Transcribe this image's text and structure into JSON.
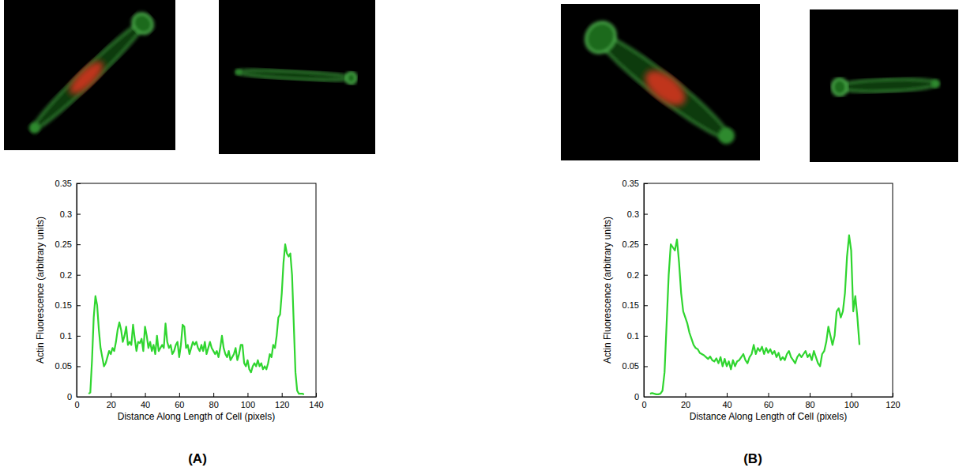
{
  "chart_data": [
    {
      "type": "line",
      "title": "(A)",
      "xlabel": "Distance Along Length of Cell (pixels)",
      "ylabel": "Actin Fluorescence (arbitrary units)",
      "xlim": [
        0,
        140
      ],
      "xticks": [
        0,
        20,
        40,
        60,
        80,
        100,
        120,
        140
      ],
      "ylim": [
        0,
        0.35
      ],
      "yticks": [
        0,
        0.05,
        0.1,
        0.15,
        0.2,
        0.25,
        0.3,
        0.35
      ],
      "x": [
        7,
        8,
        9,
        10,
        11,
        12,
        13,
        14,
        15,
        16,
        17,
        18,
        19,
        20,
        21,
        22,
        23,
        24,
        25,
        26,
        27,
        28,
        29,
        30,
        31,
        32,
        33,
        34,
        35,
        36,
        37,
        38,
        39,
        40,
        41,
        42,
        43,
        44,
        45,
        46,
        47,
        48,
        49,
        50,
        51,
        52,
        53,
        54,
        55,
        56,
        57,
        58,
        59,
        60,
        61,
        62,
        63,
        64,
        65,
        66,
        67,
        68,
        69,
        70,
        71,
        72,
        73,
        74,
        75,
        76,
        77,
        78,
        79,
        80,
        81,
        82,
        83,
        84,
        85,
        86,
        87,
        88,
        89,
        90,
        91,
        92,
        93,
        94,
        95,
        96,
        97,
        98,
        99,
        100,
        101,
        102,
        103,
        104,
        105,
        106,
        107,
        108,
        109,
        110,
        111,
        112,
        113,
        114,
        115,
        116,
        117,
        118,
        119,
        120,
        121,
        122,
        123,
        124,
        125,
        126,
        127,
        128,
        129,
        130,
        131,
        132,
        133
      ],
      "series": [
        {
          "color": "#2fd52f",
          "values": [
            0.005,
            0.007,
            0.06,
            0.13,
            0.165,
            0.15,
            0.11,
            0.08,
            0.065,
            0.05,
            0.055,
            0.065,
            0.075,
            0.07,
            0.08,
            0.075,
            0.09,
            0.11,
            0.122,
            0.11,
            0.09,
            0.1,
            0.115,
            0.085,
            0.09,
            0.085,
            0.118,
            0.095,
            0.075,
            0.09,
            0.088,
            0.095,
            0.075,
            0.115,
            0.1,
            0.08,
            0.09,
            0.075,
            0.085,
            0.07,
            0.1,
            0.075,
            0.08,
            0.085,
            0.08,
            0.12,
            0.09,
            0.08,
            0.085,
            0.07,
            0.075,
            0.085,
            0.09,
            0.065,
            0.085,
            0.118,
            0.115,
            0.08,
            0.085,
            0.07,
            0.08,
            0.09,
            0.085,
            0.09,
            0.08,
            0.075,
            0.085,
            0.075,
            0.09,
            0.07,
            0.08,
            0.09,
            0.08,
            0.075,
            0.07,
            0.075,
            0.065,
            0.08,
            0.1,
            0.08,
            0.07,
            0.065,
            0.075,
            0.06,
            0.065,
            0.07,
            0.08,
            0.06,
            0.07,
            0.085,
            0.085,
            0.055,
            0.05,
            0.06,
            0.045,
            0.04,
            0.05,
            0.055,
            0.05,
            0.06,
            0.05,
            0.055,
            0.045,
            0.05,
            0.045,
            0.055,
            0.07,
            0.065,
            0.085,
            0.08,
            0.1,
            0.13,
            0.135,
            0.17,
            0.22,
            0.25,
            0.235,
            0.23,
            0.235,
            0.2,
            0.12,
            0.04,
            0.01,
            0.005,
            0.005,
            0.005,
            0.004
          ]
        }
      ]
    },
    {
      "type": "line",
      "title": "(B)",
      "xlabel": "Distance Along Length of Cell (pixels)",
      "ylabel": "Actin Fluorescence (arbitrary units)",
      "xlim": [
        0,
        120
      ],
      "xticks": [
        0,
        20,
        40,
        60,
        80,
        100,
        120
      ],
      "ylim": [
        0,
        0.35
      ],
      "yticks": [
        0,
        0.05,
        0.1,
        0.15,
        0.2,
        0.25,
        0.3,
        0.35
      ],
      "x": [
        3,
        4,
        5,
        6,
        7,
        8,
        9,
        10,
        11,
        12,
        13,
        14,
        15,
        16,
        17,
        18,
        19,
        20,
        21,
        22,
        23,
        24,
        25,
        26,
        27,
        28,
        29,
        30,
        31,
        32,
        33,
        34,
        35,
        36,
        37,
        38,
        39,
        40,
        41,
        42,
        43,
        44,
        45,
        46,
        47,
        48,
        49,
        50,
        51,
        52,
        53,
        54,
        55,
        56,
        57,
        58,
        59,
        60,
        61,
        62,
        63,
        64,
        65,
        66,
        67,
        68,
        69,
        70,
        71,
        72,
        73,
        74,
        75,
        76,
        77,
        78,
        79,
        80,
        81,
        82,
        83,
        84,
        85,
        86,
        87,
        88,
        89,
        90,
        91,
        92,
        93,
        94,
        95,
        96,
        97,
        98,
        99,
        100,
        101,
        102,
        103,
        104
      ],
      "series": [
        {
          "color": "#2fd52f",
          "values": [
            0.005,
            0.006,
            0.005,
            0.004,
            0.004,
            0.005,
            0.01,
            0.04,
            0.12,
            0.2,
            0.25,
            0.245,
            0.24,
            0.258,
            0.22,
            0.17,
            0.14,
            0.13,
            0.12,
            0.105,
            0.095,
            0.085,
            0.08,
            0.078,
            0.072,
            0.07,
            0.068,
            0.065,
            0.062,
            0.066,
            0.06,
            0.058,
            0.063,
            0.055,
            0.065,
            0.05,
            0.062,
            0.05,
            0.058,
            0.045,
            0.06,
            0.05,
            0.058,
            0.06,
            0.065,
            0.07,
            0.06,
            0.055,
            0.065,
            0.07,
            0.085,
            0.07,
            0.08,
            0.075,
            0.082,
            0.07,
            0.08,
            0.072,
            0.078,
            0.07,
            0.075,
            0.065,
            0.072,
            0.06,
            0.065,
            0.06,
            0.07,
            0.075,
            0.065,
            0.06,
            0.055,
            0.065,
            0.07,
            0.065,
            0.07,
            0.075,
            0.065,
            0.07,
            0.06,
            0.075,
            0.065,
            0.055,
            0.05,
            0.07,
            0.075,
            0.09,
            0.115,
            0.1,
            0.085,
            0.1,
            0.14,
            0.145,
            0.13,
            0.14,
            0.17,
            0.23,
            0.265,
            0.24,
            0.14,
            0.165,
            0.13,
            0.085
          ]
        }
      ]
    }
  ]
}
